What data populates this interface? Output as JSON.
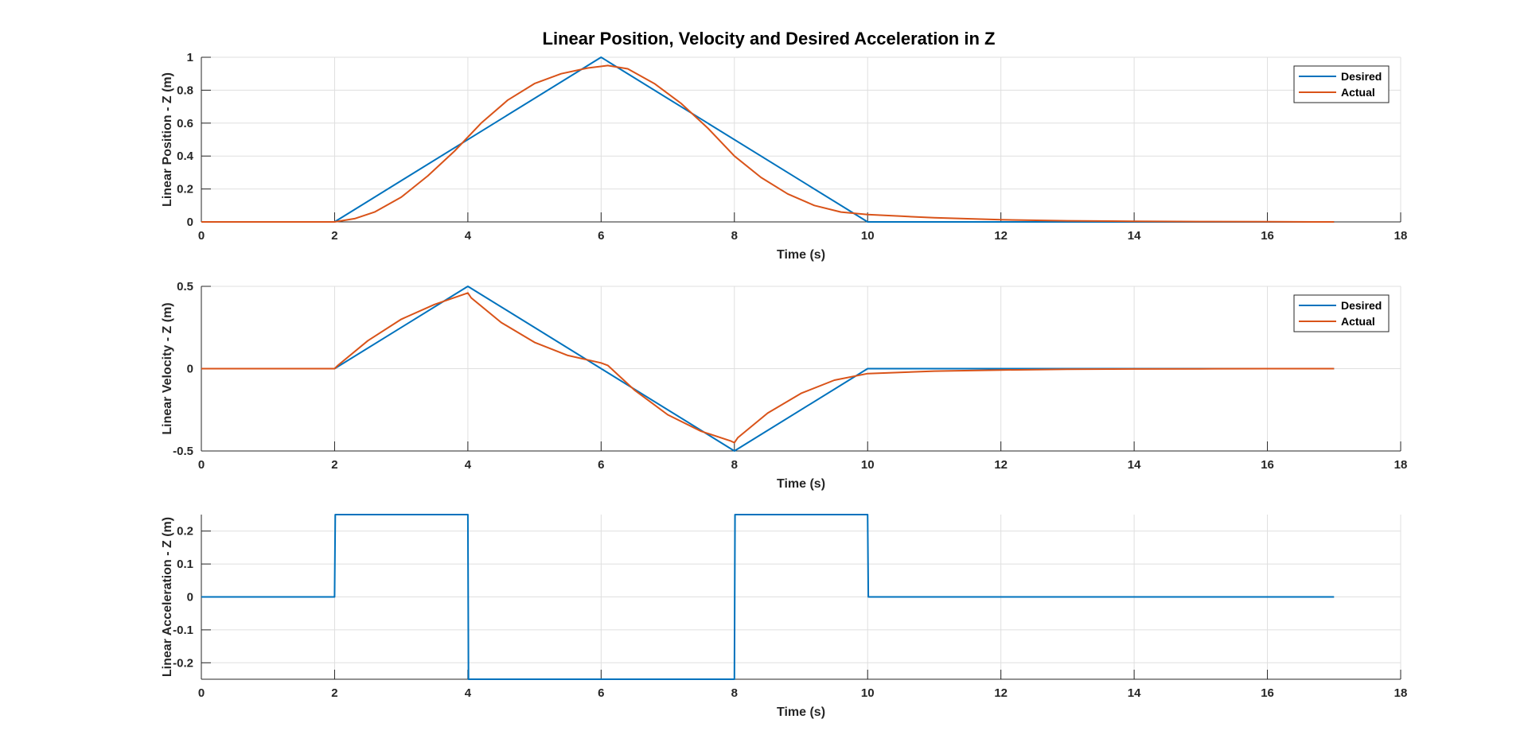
{
  "figure": {
    "title": "Linear Position, Velocity and Desired Acceleration in Z"
  },
  "colors": {
    "desired": "#0072BD",
    "actual": "#D95319"
  },
  "chart_data": [
    {
      "type": "line",
      "title": "Linear Position, Velocity and Desired Acceleration in Z",
      "xlabel": "Time (s)",
      "ylabel": "Linear Position - Z (m)",
      "xlim": [
        0,
        18
      ],
      "ylim": [
        0,
        1
      ],
      "xticks": [
        0,
        2,
        4,
        6,
        8,
        10,
        12,
        14,
        16,
        18
      ],
      "yticks": [
        0,
        0.2,
        0.4,
        0.6,
        0.8,
        1
      ],
      "ytick_labels": [
        "0",
        "0.2",
        "0.4",
        "0.6",
        "0.8",
        "1"
      ],
      "grid": true,
      "legend": "top-right",
      "series": [
        {
          "name": "Desired",
          "color": "#0072BD",
          "x": [
            0,
            2,
            6,
            10,
            17
          ],
          "y": [
            0,
            0,
            1,
            0,
            0
          ]
        },
        {
          "name": "Actual",
          "color": "#D95319",
          "x": [
            0,
            2,
            2.3,
            2.6,
            3.0,
            3.4,
            3.8,
            4.2,
            4.6,
            5.0,
            5.4,
            5.8,
            6.1,
            6.4,
            6.8,
            7.2,
            7.6,
            8.0,
            8.4,
            8.8,
            9.2,
            9.6,
            10.0,
            10.5,
            11,
            12,
            13,
            14,
            15,
            16,
            17
          ],
          "y": [
            0,
            0,
            0.02,
            0.06,
            0.15,
            0.28,
            0.43,
            0.6,
            0.74,
            0.84,
            0.9,
            0.935,
            0.95,
            0.93,
            0.84,
            0.72,
            0.57,
            0.4,
            0.27,
            0.17,
            0.1,
            0.06,
            0.045,
            0.035,
            0.025,
            0.013,
            0.007,
            0.004,
            0.002,
            0.001,
            0
          ]
        }
      ]
    },
    {
      "type": "line",
      "xlabel": "Time (s)",
      "ylabel": "Linear Velocity - Z (m)",
      "xlim": [
        0,
        18
      ],
      "ylim": [
        -0.5,
        0.5
      ],
      "xticks": [
        0,
        2,
        4,
        6,
        8,
        10,
        12,
        14,
        16,
        18
      ],
      "yticks": [
        -0.5,
        0,
        0.5
      ],
      "ytick_labels": [
        "-0.5",
        "0",
        "0.5"
      ],
      "grid": true,
      "legend": "top-right",
      "series": [
        {
          "name": "Desired",
          "color": "#0072BD",
          "x": [
            0,
            2,
            4,
            8,
            10,
            17
          ],
          "y": [
            0,
            0,
            0.5,
            -0.5,
            0,
            0
          ]
        },
        {
          "name": "Actual",
          "color": "#D95319",
          "x": [
            0,
            2,
            2.05,
            2.5,
            3.0,
            3.5,
            4.0,
            4.05,
            4.5,
            5.0,
            5.5,
            6.0,
            6.1,
            6.5,
            7.0,
            7.5,
            7.95,
            8.0,
            8.05,
            8.5,
            9.0,
            9.5,
            10.0,
            11,
            12,
            13,
            14,
            15,
            16,
            17
          ],
          "y": [
            0,
            0,
            0.02,
            0.17,
            0.3,
            0.39,
            0.46,
            0.43,
            0.28,
            0.16,
            0.08,
            0.035,
            0.02,
            -0.13,
            -0.28,
            -0.38,
            -0.44,
            -0.45,
            -0.42,
            -0.27,
            -0.15,
            -0.07,
            -0.03,
            -0.015,
            -0.008,
            -0.004,
            -0.002,
            -0.001,
            0,
            0
          ]
        }
      ]
    },
    {
      "type": "line",
      "xlabel": "Time (s)",
      "ylabel": "Linear Acceleration - Z (m)",
      "xlim": [
        0,
        18
      ],
      "ylim": [
        -0.25,
        0.25
      ],
      "xticks": [
        0,
        2,
        4,
        6,
        8,
        10,
        12,
        14,
        16,
        18
      ],
      "yticks": [
        -0.2,
        -0.1,
        0,
        0.1,
        0.2
      ],
      "ytick_labels": [
        "-0.2",
        "-0.1",
        "0",
        "0.1",
        "0.2"
      ],
      "grid": true,
      "legend": "none",
      "series": [
        {
          "color": "#0072BD",
          "x": [
            0,
            2,
            2.01,
            4,
            4.01,
            8,
            8.01,
            10,
            10.01,
            17
          ],
          "y": [
            0,
            0,
            0.25,
            0.25,
            -0.25,
            -0.25,
            0.25,
            0.25,
            0,
            0
          ]
        }
      ]
    }
  ]
}
